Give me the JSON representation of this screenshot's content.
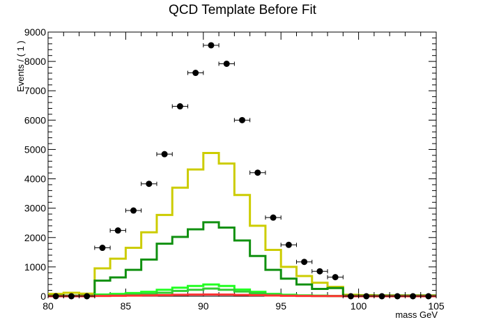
{
  "chart_data": {
    "type": "line",
    "title": "QCD Template Before Fit",
    "xlabel": "mass GeV",
    "ylabel": "Events / ( 1 )",
    "xlim": [
      80,
      105
    ],
    "ylim": [
      0,
      9000
    ],
    "xticks": [
      "80",
      "85",
      "90",
      "95",
      "100",
      "105"
    ],
    "yticks": [
      "0",
      "1000",
      "2000",
      "3000",
      "4000",
      "5000",
      "6000",
      "7000",
      "8000",
      "9000"
    ],
    "bin_edges": [
      80,
      81,
      82,
      83,
      84,
      85,
      86,
      87,
      88,
      89,
      90,
      91,
      92,
      93,
      94,
      95,
      96,
      97,
      98,
      99,
      100,
      101,
      102,
      103,
      104,
      105
    ],
    "data_points": {
      "name": "data",
      "x": [
        80.5,
        81.5,
        82.5,
        83.5,
        84.5,
        85.5,
        86.5,
        87.5,
        88.5,
        89.5,
        90.5,
        91.5,
        92.5,
        93.5,
        94.5,
        95.5,
        96.5,
        97.5,
        98.5,
        99.5,
        100.5,
        101.5,
        102.5,
        103.5,
        104.5
      ],
      "y": [
        0,
        0,
        0,
        1650,
        2240,
        2920,
        3830,
        4840,
        6470,
        7610,
        8550,
        7920,
        6000,
        4210,
        2680,
        1750,
        1170,
        850,
        650,
        0,
        0,
        0,
        0,
        0,
        0
      ],
      "color": "#000000"
    },
    "series": [
      {
        "color": "#cccc00",
        "values": [
          80,
          120,
          90,
          950,
          1280,
          1650,
          2180,
          2770,
          3700,
          4320,
          4880,
          4520,
          3450,
          2400,
          1580,
          1000,
          690,
          460,
          320,
          50,
          40,
          30,
          30,
          30,
          30
        ]
      },
      {
        "color": "#109010",
        "values": [
          20,
          20,
          20,
          530,
          640,
          900,
          1250,
          1790,
          2020,
          2280,
          2520,
          2340,
          1900,
          1370,
          900,
          600,
          400,
          250,
          280,
          20,
          20,
          20,
          20,
          20,
          20
        ]
      },
      {
        "color": "#22ff22",
        "values": [
          0,
          0,
          0,
          60,
          80,
          110,
          150,
          220,
          290,
          350,
          400,
          350,
          230,
          150,
          80,
          50,
          30,
          20,
          10,
          0,
          0,
          0,
          0,
          0,
          0
        ]
      },
      {
        "color": "#33cc33",
        "values": [
          0,
          0,
          0,
          30,
          40,
          60,
          80,
          120,
          180,
          220,
          260,
          220,
          160,
          100,
          60,
          30,
          20,
          10,
          5,
          0,
          0,
          0,
          0,
          0,
          0
        ]
      },
      {
        "color": "#ff3333",
        "values": [
          0,
          0,
          0,
          10,
          15,
          20,
          30,
          40,
          50,
          55,
          60,
          55,
          45,
          35,
          25,
          15,
          10,
          5,
          5,
          0,
          0,
          0,
          0,
          0,
          0
        ]
      }
    ]
  }
}
